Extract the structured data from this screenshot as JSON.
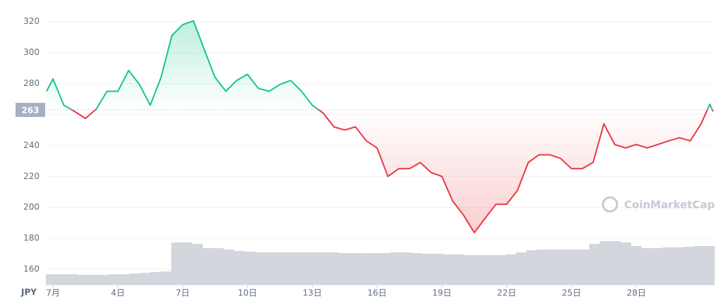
{
  "chart_data": {
    "type": "line",
    "currency": "JPY",
    "watermark": "CoinMarketCap",
    "baseline": 263,
    "up_color": "#16c784",
    "down_color": "#ea3943",
    "volume_color": "#c9ccd4",
    "grid": true,
    "ylim": [
      150,
      334
    ],
    "yticks": [
      160,
      180,
      200,
      220,
      240,
      260,
      280,
      300,
      320
    ],
    "xlim": [
      0.67,
      31.62
    ],
    "xticks": [
      {
        "value": 1,
        "label": "7月"
      },
      {
        "value": 4,
        "label": "4日"
      },
      {
        "value": 7,
        "label": "7日"
      },
      {
        "value": 10,
        "label": "10日"
      },
      {
        "value": 13,
        "label": "13日"
      },
      {
        "value": 16,
        "label": "16日"
      },
      {
        "value": 19,
        "label": "19日"
      },
      {
        "value": 22,
        "label": "22日"
      },
      {
        "value": 25,
        "label": "25日"
      },
      {
        "value": 28,
        "label": "28日"
      }
    ],
    "x": [
      0.7,
      1,
      1.5,
      2,
      2.5,
      3,
      3.5,
      4,
      4.5,
      5,
      5.5,
      6,
      6.5,
      7,
      7.5,
      8,
      8.5,
      9,
      9.5,
      10,
      10.5,
      11,
      11.5,
      12,
      12.5,
      13,
      13.5,
      14,
      14.5,
      15,
      15.5,
      16,
      16.5,
      17,
      17.5,
      18,
      18.5,
      19,
      19.5,
      20,
      20.5,
      21,
      21.5,
      22,
      22.5,
      23,
      23.5,
      24,
      24.5,
      25,
      25.5,
      26,
      26.5,
      27,
      27.5,
      28,
      28.5,
      29,
      29.5,
      30,
      30.5,
      31,
      31.4,
      31.55
    ],
    "values": [
      275,
      283,
      266,
      262,
      257.5,
      263.5,
      275,
      275,
      288.5,
      279.4,
      266,
      284,
      311,
      318,
      320.5,
      302,
      284,
      275,
      282,
      286,
      277,
      275,
      279.4,
      282,
      275,
      266,
      261,
      252,
      250,
      252,
      243,
      238.4,
      220,
      225,
      225,
      229,
      222.5,
      220,
      204,
      195,
      183.7,
      193,
      202,
      202,
      211,
      229,
      234,
      234,
      231.6,
      225,
      225,
      229,
      254,
      240.7,
      238.4,
      240.7,
      238.4,
      240.7,
      243,
      245,
      243,
      254,
      266.7,
      262
    ],
    "volume": [
      15,
      15,
      15,
      14,
      14,
      14,
      15,
      15,
      16,
      17,
      18,
      19,
      60,
      60,
      58,
      52,
      52,
      50,
      48,
      47,
      46,
      46,
      46,
      46,
      46,
      46,
      46,
      46,
      45,
      45,
      45,
      45,
      45,
      46,
      46,
      45,
      44,
      44,
      43,
      43,
      42,
      42,
      42,
      42,
      43,
      46,
      49,
      50,
      50,
      50,
      50,
      50,
      58,
      62,
      62,
      60,
      55,
      52,
      52,
      53,
      53,
      54,
      55,
      55
    ]
  }
}
